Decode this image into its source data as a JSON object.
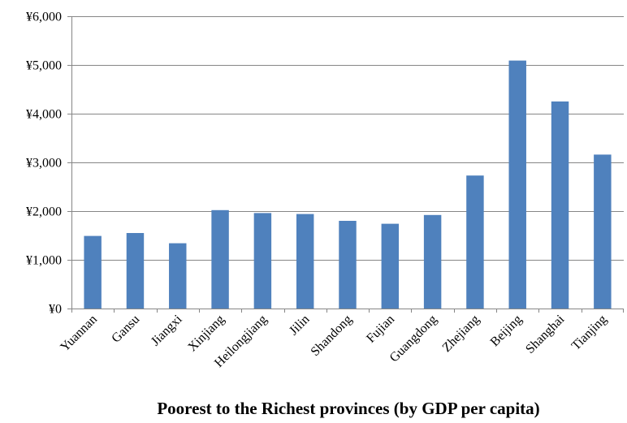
{
  "chart_data": {
    "type": "bar",
    "title": "",
    "xlabel": "Poorest to the Richest provinces (by GDP per capita)",
    "ylabel": "",
    "categories": [
      "Yuannan",
      "Gansu",
      "Jiangxi",
      "Xinjiang",
      "Heilongjiang",
      "Jilin",
      "Shandong",
      "Fujian",
      "Guangdong",
      "Zhejiang",
      "Beijing",
      "Shanghai",
      "Tianjing"
    ],
    "values": [
      1490,
      1550,
      1340,
      2020,
      1960,
      1940,
      1800,
      1740,
      1920,
      2730,
      5090,
      4250,
      3160
    ],
    "ylim": [
      0,
      6000
    ],
    "yticks": [
      0,
      1000,
      2000,
      3000,
      4000,
      5000,
      6000
    ],
    "ytick_labels": [
      "¥0",
      "¥1,000",
      "¥2,000",
      "¥3,000",
      "¥4,000",
      "¥5,000",
      "¥6,000"
    ],
    "grid": true,
    "legend": "none",
    "bar_color": "#4f81bd",
    "grid_color": "#868686"
  }
}
